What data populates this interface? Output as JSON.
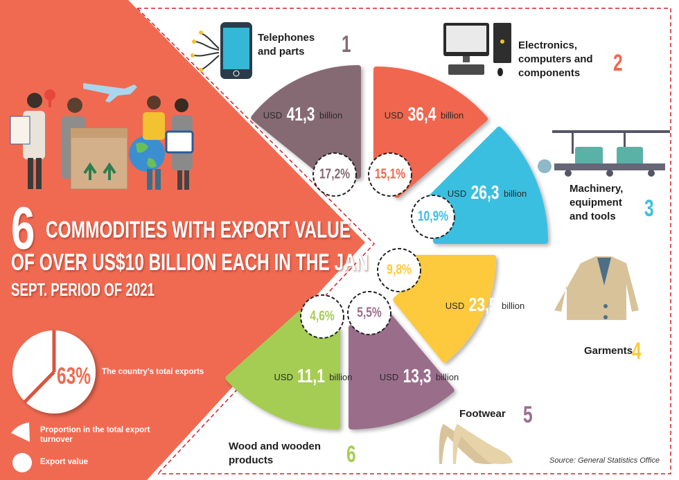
{
  "headline": {
    "number": "6",
    "line1": "COMMODITIES WITH EXPORT VALUE",
    "line2": "OF OVER US$10 BILLION EACH IN THE JAN",
    "line3": "SEPT. PERIOD OF 2021"
  },
  "summary": {
    "percent": "63%",
    "label": "The country’s total exports",
    "share": 63
  },
  "legend": {
    "wedge_label": "Proportion in the total export turnover",
    "circle_label": "Export value"
  },
  "unit_prefix": "USD",
  "unit_suffix": "billion",
  "source": "Source: General Statistics Office",
  "colors": {
    "accent": "#f06a52",
    "dash": "#d4202a"
  },
  "chart_data": {
    "type": "bar",
    "title": "6 commodities with export value of over US$10 billion each in the Jan-Sept. period of 2021",
    "ylabel": "Export value (USD billion)",
    "categories": [
      "Telephones and parts",
      "Electronics, computers and components",
      "Machinery, equipment and tools",
      "Garments",
      "Footwear",
      "Wood and wooden products"
    ],
    "items": [
      {
        "rank": "1",
        "name_lines": [
          "Telephones",
          "and parts"
        ],
        "value": 41.3,
        "value_label": "41,3",
        "share": 17.2,
        "share_label": "17,2%",
        "color": "#866a73"
      },
      {
        "rank": "2",
        "name_lines": [
          "Electronics,",
          "computers and",
          "components"
        ],
        "value": 36.4,
        "value_label": "36,4",
        "share": 15.1,
        "share_label": "15,1%",
        "color": "#f0664f"
      },
      {
        "rank": "3",
        "name_lines": [
          "Machinery,",
          "equipment",
          "and tools"
        ],
        "value": 26.3,
        "value_label": "26,3",
        "share": 10.9,
        "share_label": "10,9%",
        "color": "#3bbfe0"
      },
      {
        "rank": "4",
        "name_lines": [
          "Garments"
        ],
        "value": 23.5,
        "value_label": "23,5",
        "share": 9.8,
        "share_label": "9,8%",
        "color": "#fdc93d"
      },
      {
        "rank": "5",
        "name_lines": [
          "Footwear"
        ],
        "value": 13.3,
        "value_label": "13,3",
        "share": 5.5,
        "share_label": "5,5%",
        "color": "#9a6d8b"
      },
      {
        "rank": "6",
        "name_lines": [
          "Wood and wooden",
          "products"
        ],
        "value": 11.1,
        "value_label": "11,1",
        "share": 4.6,
        "share_label": "4,6%",
        "color": "#a6cd52"
      }
    ]
  }
}
